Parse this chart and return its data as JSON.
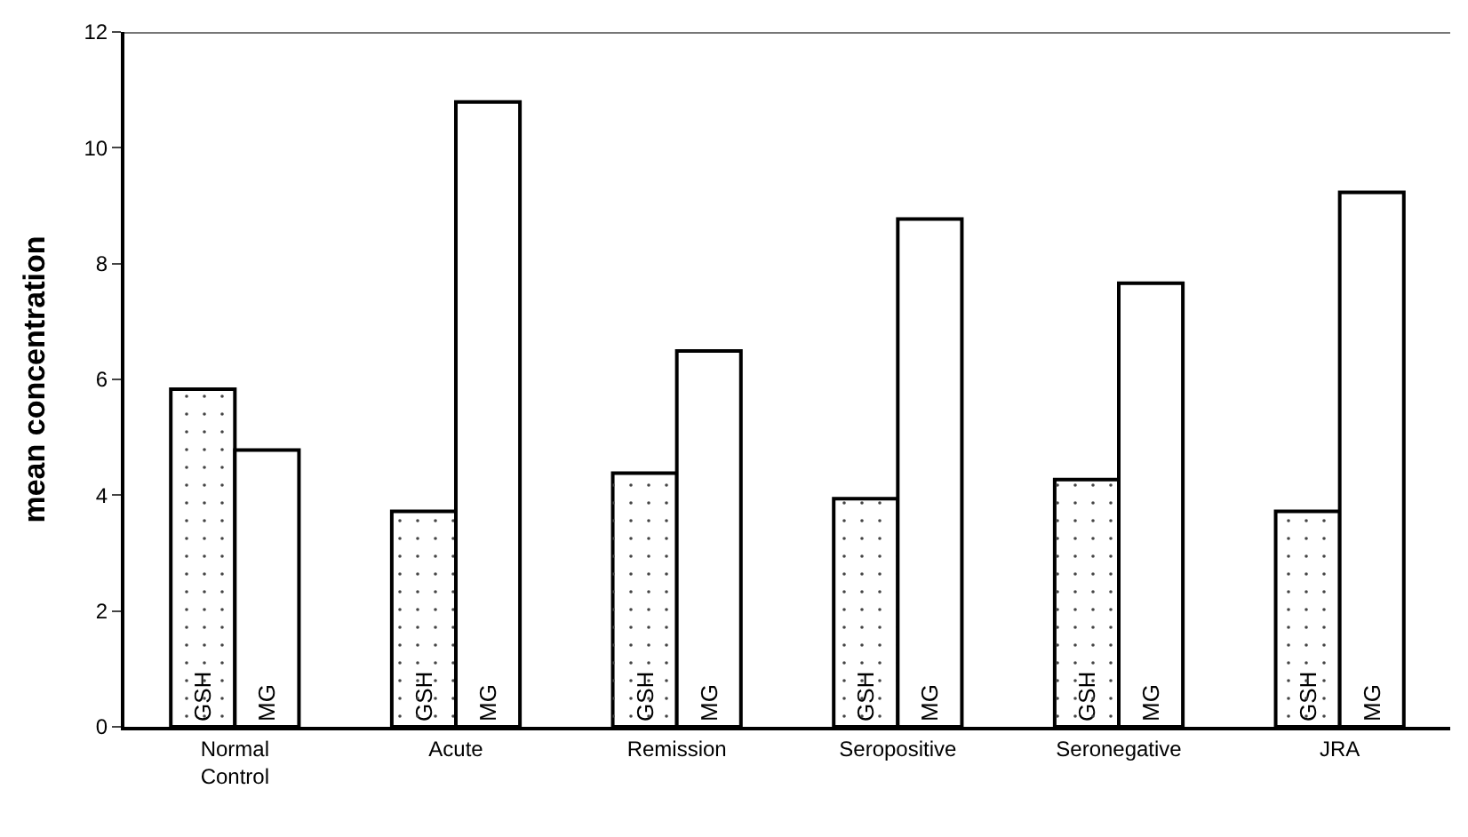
{
  "chart_data": {
    "type": "bar",
    "ylabel": "mean concentration",
    "categories": [
      "Normal Control",
      "Acute",
      "Remission",
      "Seropositive",
      "Seronegative",
      "JRA"
    ],
    "series": [
      {
        "name": "GSH",
        "color": "#ffffff",
        "values": [
          5.83,
          3.72,
          4.38,
          3.94,
          4.27,
          3.72
        ]
      },
      {
        "name": "MG",
        "color": "#ffffff",
        "values": [
          4.78,
          10.79,
          6.49,
          8.77,
          7.66,
          9.23
        ]
      }
    ],
    "ylim": [
      0,
      12
    ],
    "yticks": [
      0,
      2,
      4,
      6,
      8,
      10,
      12
    ],
    "grid": false,
    "legend": false
  }
}
